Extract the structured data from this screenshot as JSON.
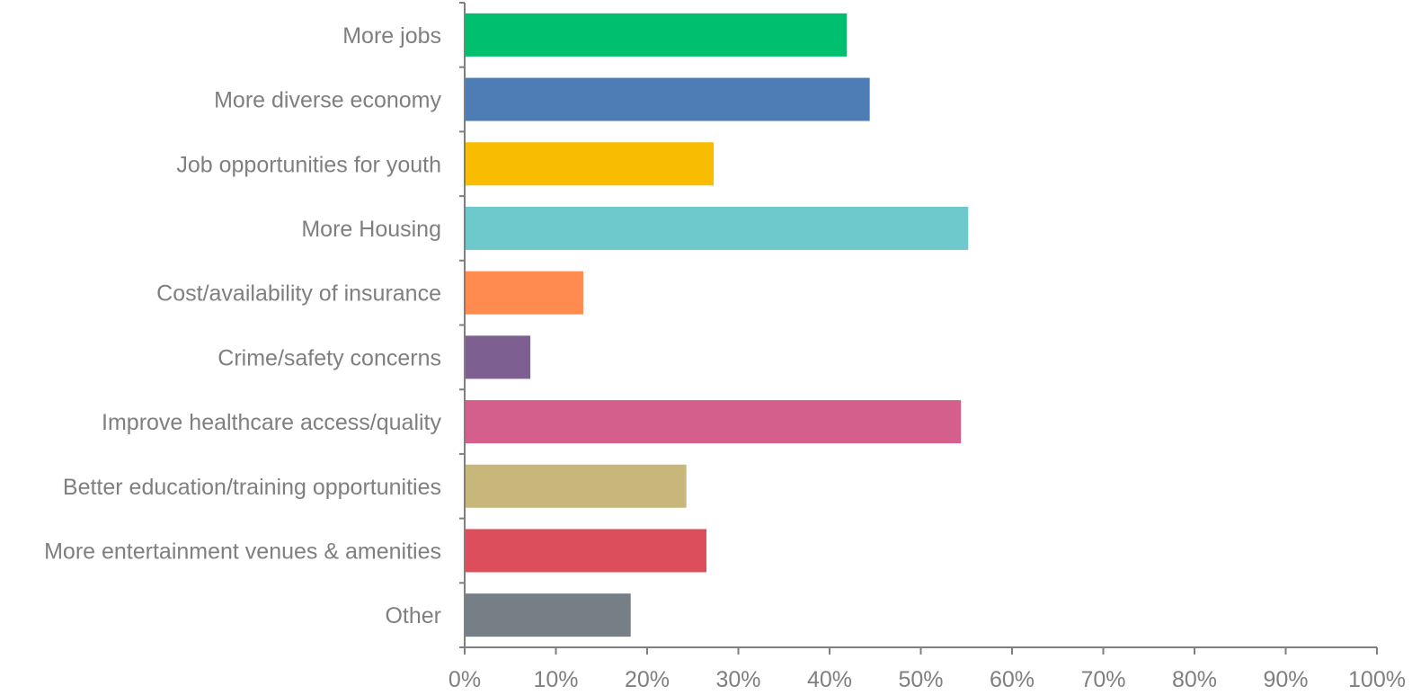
{
  "chart_data": {
    "type": "bar",
    "orientation": "horizontal",
    "categories": [
      "More jobs",
      "More diverse economy",
      "Job opportunities for youth",
      "More Housing",
      "Cost/availability of insurance",
      "Crime/safety concerns",
      "Improve healthcare access/quality",
      "Better education/training opportunities",
      "More entertainment venues & amenities",
      "Other"
    ],
    "values": [
      41.9,
      44.4,
      27.3,
      55.2,
      13.0,
      7.2,
      54.4,
      24.3,
      26.5,
      18.2
    ],
    "colors": [
      "#00c06f",
      "#4e7db5",
      "#f8bd00",
      "#6ec9cc",
      "#ff8b4f",
      "#7e5f92",
      "#d45f8d",
      "#c8b77a",
      "#dd4e5c",
      "#777f86"
    ],
    "xlim": [
      0,
      100
    ],
    "xticks": [
      "0%",
      "10%",
      "20%",
      "30%",
      "40%",
      "50%",
      "60%",
      "70%",
      "80%",
      "90%",
      "100%"
    ],
    "title": "",
    "xlabel": "",
    "ylabel": "",
    "grid": false,
    "legend": "none"
  }
}
